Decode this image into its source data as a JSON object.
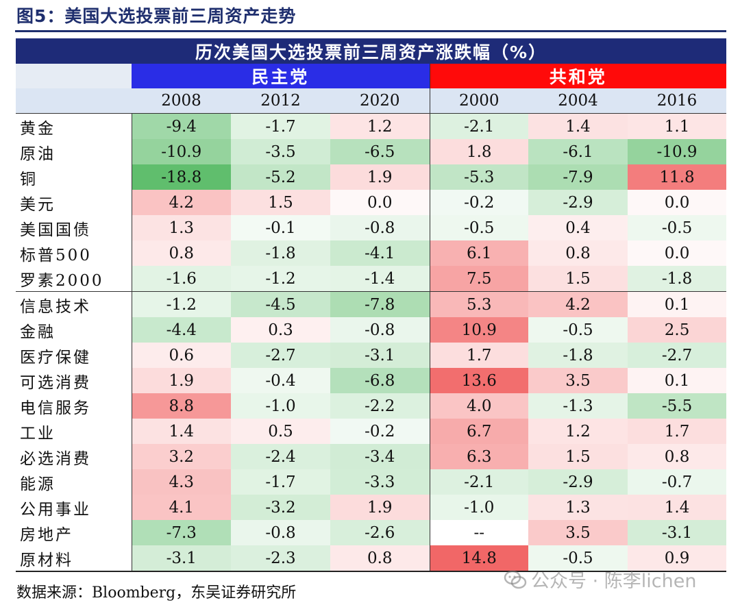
{
  "figure_title": "图5：美国大选投票前三周资产走势",
  "table": {
    "header": "历次美国大选投票前三周资产涨跌幅（%）",
    "parties": [
      {
        "name": "民主党",
        "color": "#2a2de6"
      },
      {
        "name": "共和党",
        "color": "#ff0a0a"
      }
    ],
    "years": [
      "2008",
      "2012",
      "2020",
      "2000",
      "2004",
      "2016"
    ],
    "rows": [
      {
        "label": "黄金",
        "values": [
          "-9.4",
          "-1.7",
          "1.2",
          "-2.1",
          "1.4",
          "1.1"
        ]
      },
      {
        "label": "原油",
        "values": [
          "-10.9",
          "-3.5",
          "-6.5",
          "1.8",
          "-6.1",
          "-10.9"
        ]
      },
      {
        "label": "铜",
        "values": [
          "-18.8",
          "-5.2",
          "1.9",
          "-5.3",
          "-7.9",
          "11.8"
        ]
      },
      {
        "label": "美元",
        "values": [
          "4.2",
          "1.5",
          "0.0",
          "-0.2",
          "-2.9",
          "0.0"
        ]
      },
      {
        "label": "美国国债",
        "values": [
          "1.3",
          "-0.1",
          "-0.8",
          "-0.5",
          "0.4",
          "-0.5"
        ]
      },
      {
        "label": "标普500",
        "values": [
          "0.8",
          "-1.8",
          "-4.1",
          "6.1",
          "0.8",
          "0.0"
        ]
      },
      {
        "label": "罗素2000",
        "values": [
          "-1.6",
          "-1.2",
          "-1.4",
          "7.5",
          "1.5",
          "-1.8"
        ]
      },
      {
        "label": "信息技术",
        "values": [
          "-1.2",
          "-4.5",
          "-7.8",
          "5.3",
          "4.2",
          "0.1"
        ]
      },
      {
        "label": "金融",
        "values": [
          "-4.4",
          "0.3",
          "-0.8",
          "10.9",
          "-0.5",
          "2.5"
        ]
      },
      {
        "label": "医疗保健",
        "values": [
          "0.6",
          "-2.7",
          "-3.1",
          "1.7",
          "-1.8",
          "-2.7"
        ]
      },
      {
        "label": "可选消费",
        "values": [
          "1.9",
          "-0.4",
          "-6.8",
          "13.6",
          "3.5",
          "0.1"
        ]
      },
      {
        "label": "电信服务",
        "values": [
          "8.8",
          "-1.0",
          "-2.2",
          "4.0",
          "-1.3",
          "-5.5"
        ]
      },
      {
        "label": "工业",
        "values": [
          "1.4",
          "0.5",
          "-0.2",
          "6.7",
          "1.2",
          "1.7"
        ]
      },
      {
        "label": "必选消费",
        "values": [
          "3.2",
          "-2.4",
          "-3.4",
          "6.3",
          "1.5",
          "0.8"
        ]
      },
      {
        "label": "能源",
        "values": [
          "4.3",
          "-1.7",
          "-3.3",
          "-2.1",
          "-2.9",
          "-0.7"
        ]
      },
      {
        "label": "公用事业",
        "values": [
          "4.1",
          "-3.2",
          "1.9",
          "-1.0",
          "1.3",
          "1.4"
        ]
      },
      {
        "label": "房地产",
        "values": [
          "-7.3",
          "-0.8",
          "-2.6",
          "--",
          "3.5",
          "-3.1"
        ]
      },
      {
        "label": "原材料",
        "values": [
          "-3.1",
          "-2.3",
          "0.8",
          "14.8",
          "-0.5",
          "0.9"
        ]
      }
    ],
    "group_break_after_row": 6
  },
  "source": "数据来源：Bloomberg，东吴证券研究所",
  "watermark": "公众号 · 陈李lichen",
  "colors": {
    "positive": "#f05a5a",
    "negative": "#52b860",
    "neutral": "#ffffff"
  }
}
